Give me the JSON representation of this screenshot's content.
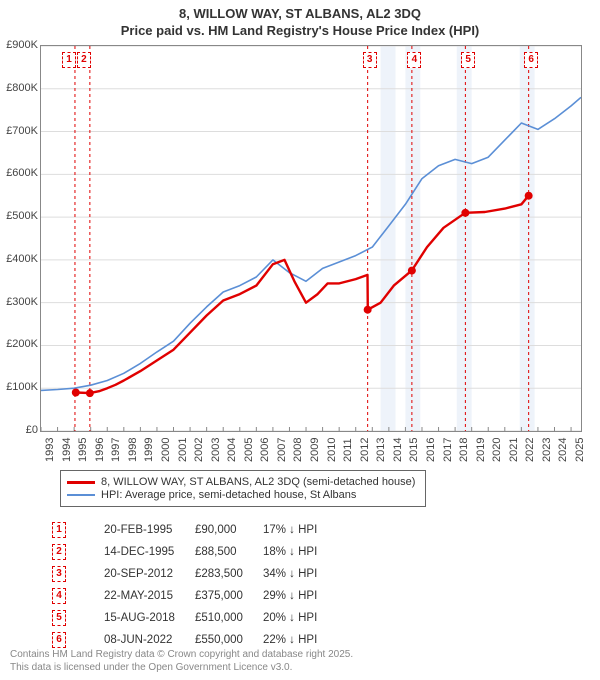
{
  "title_line1": "8, WILLOW WAY, ST ALBANS, AL2 3DQ",
  "title_line2": "Price paid vs. HM Land Registry's House Price Index (HPI)",
  "chart": {
    "type": "line",
    "background_color": "#ffffff",
    "x": {
      "min": 1993,
      "max": 2025.6,
      "ticks": [
        1993,
        1994,
        1995,
        1996,
        1997,
        1998,
        1999,
        2000,
        2001,
        2002,
        2003,
        2004,
        2005,
        2006,
        2007,
        2008,
        2009,
        2010,
        2011,
        2012,
        2013,
        2014,
        2015,
        2016,
        2017,
        2018,
        2019,
        2020,
        2021,
        2022,
        2023,
        2024,
        2025
      ]
    },
    "y": {
      "min": 0,
      "max": 900000,
      "ticks": [
        0,
        100000,
        200000,
        300000,
        400000,
        500000,
        600000,
        700000,
        800000,
        900000
      ],
      "tick_labels": [
        "£0",
        "£100K",
        "£200K",
        "£300K",
        "£400K",
        "£500K",
        "£600K",
        "£700K",
        "£800K",
        "£900K"
      ]
    },
    "grid_color": "#dddddd",
    "band_color": "#eef3fa",
    "bands": [
      [
        2013.5,
        2014.4
      ],
      [
        2015.0,
        2015.9
      ],
      [
        2018.1,
        2019.0
      ],
      [
        2021.9,
        2022.8
      ]
    ],
    "vlines": {
      "color": "#e00000",
      "dash": "3,3",
      "x": [
        1995.05,
        1995.95,
        2012.72,
        2015.39,
        2018.62,
        2022.44
      ]
    },
    "top_markers": [
      {
        "n": "1",
        "x": 1994.75
      },
      {
        "n": "2",
        "x": 1995.65
      },
      {
        "n": "3",
        "x": 2012.9
      },
      {
        "n": "4",
        "x": 2015.6
      },
      {
        "n": "5",
        "x": 2018.85
      },
      {
        "n": "6",
        "x": 2022.65
      }
    ],
    "series": [
      {
        "name": "hpi",
        "label": "HPI: Average price, semi-detached house, St Albans",
        "color": "#5b8fd6",
        "width": 1.6,
        "points": [
          [
            1993.0,
            95000
          ],
          [
            1994.0,
            97000
          ],
          [
            1995.0,
            100000
          ],
          [
            1996.0,
            107000
          ],
          [
            1997.0,
            118000
          ],
          [
            1998.0,
            135000
          ],
          [
            1999.0,
            158000
          ],
          [
            2000.0,
            185000
          ],
          [
            2001.0,
            210000
          ],
          [
            2002.0,
            252000
          ],
          [
            2003.0,
            290000
          ],
          [
            2004.0,
            325000
          ],
          [
            2005.0,
            340000
          ],
          [
            2006.0,
            360000
          ],
          [
            2007.0,
            400000
          ],
          [
            2008.0,
            370000
          ],
          [
            2009.0,
            350000
          ],
          [
            2010.0,
            380000
          ],
          [
            2011.0,
            395000
          ],
          [
            2012.0,
            410000
          ],
          [
            2013.0,
            430000
          ],
          [
            2014.0,
            480000
          ],
          [
            2015.0,
            530000
          ],
          [
            2016.0,
            590000
          ],
          [
            2017.0,
            620000
          ],
          [
            2018.0,
            635000
          ],
          [
            2019.0,
            625000
          ],
          [
            2020.0,
            640000
          ],
          [
            2021.0,
            680000
          ],
          [
            2022.0,
            720000
          ],
          [
            2023.0,
            705000
          ],
          [
            2024.0,
            730000
          ],
          [
            2025.0,
            760000
          ],
          [
            2025.6,
            780000
          ]
        ]
      },
      {
        "name": "price",
        "label": "8, WILLOW WAY, ST ALBANS, AL2 3DQ (semi-detached house)",
        "color": "#e00000",
        "width": 2.4,
        "points": [
          [
            1995.1,
            90000
          ],
          [
            1995.95,
            88500
          ],
          [
            1996.5,
            93000
          ],
          [
            1997.0,
            100000
          ],
          [
            1997.5,
            108000
          ],
          [
            1998.0,
            118000
          ],
          [
            1999.0,
            140000
          ],
          [
            2000.0,
            165000
          ],
          [
            2001.0,
            190000
          ],
          [
            2002.0,
            230000
          ],
          [
            2003.0,
            270000
          ],
          [
            2004.0,
            305000
          ],
          [
            2005.0,
            320000
          ],
          [
            2006.0,
            340000
          ],
          [
            2007.0,
            390000
          ],
          [
            2007.7,
            400000
          ],
          [
            2008.3,
            350000
          ],
          [
            2009.0,
            300000
          ],
          [
            2009.7,
            320000
          ],
          [
            2010.3,
            345000
          ],
          [
            2011.0,
            345000
          ],
          [
            2012.0,
            355000
          ],
          [
            2012.71,
            365000
          ],
          [
            2012.73,
            283500
          ],
          [
            2013.5,
            300000
          ],
          [
            2014.3,
            340000
          ],
          [
            2015.38,
            375000
          ],
          [
            2016.3,
            430000
          ],
          [
            2017.3,
            475000
          ],
          [
            2018.61,
            510000
          ],
          [
            2019.8,
            512000
          ],
          [
            2021.0,
            520000
          ],
          [
            2022.0,
            530000
          ],
          [
            2022.43,
            550000
          ]
        ],
        "dots": [
          [
            1995.1,
            90000
          ],
          [
            1995.95,
            88500
          ],
          [
            2012.72,
            283500
          ],
          [
            2015.39,
            375000
          ],
          [
            2018.62,
            510000
          ],
          [
            2022.44,
            550000
          ]
        ]
      }
    ]
  },
  "legend": {
    "items": [
      {
        "color": "#e00000",
        "width": 3,
        "label": "8, WILLOW WAY, ST ALBANS, AL2 3DQ (semi-detached house)"
      },
      {
        "color": "#5b8fd6",
        "width": 2,
        "label": "HPI: Average price, semi-detached house, St Albans"
      }
    ]
  },
  "transactions": [
    {
      "n": "1",
      "date": "20-FEB-1995",
      "price": "£90,000",
      "delta": "17% ↓ HPI"
    },
    {
      "n": "2",
      "date": "14-DEC-1995",
      "price": "£88,500",
      "delta": "18% ↓ HPI"
    },
    {
      "n": "3",
      "date": "20-SEP-2012",
      "price": "£283,500",
      "delta": "34% ↓ HPI"
    },
    {
      "n": "4",
      "date": "22-MAY-2015",
      "price": "£375,000",
      "delta": "29% ↓ HPI"
    },
    {
      "n": "5",
      "date": "15-AUG-2018",
      "price": "£510,000",
      "delta": "20% ↓ HPI"
    },
    {
      "n": "6",
      "date": "08-JUN-2022",
      "price": "£550,000",
      "delta": "22% ↓ HPI"
    }
  ],
  "footer": {
    "line1": "Contains HM Land Registry data © Crown copyright and database right 2025.",
    "line2": "This data is licensed under the Open Government Licence v3.0."
  }
}
